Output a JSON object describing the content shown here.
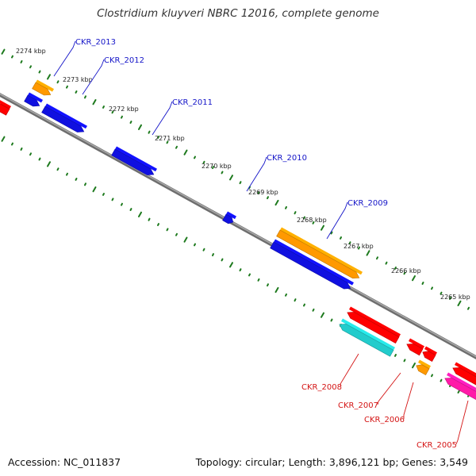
{
  "title": "Clostridium kluyveri NBRC 12016, complete genome",
  "footer": {
    "accession": "Accession: NC_011837",
    "summary": "Topology: circular; Length: 3,896,121 bp; Genes: 3,549"
  },
  "colors": {
    "backbone": "#888888",
    "tick": "#1e7a1e",
    "forward_label": "#1414c8",
    "reverse_label": "#d41414",
    "blue": "#1010e0",
    "orange": "#ff9900",
    "red": "#ff0000",
    "cyan": "#22cccc",
    "magenta": "#ff1aa8"
  },
  "scale": {
    "unit": "kbp",
    "labels": [
      "2274 kbp",
      "2273 kbp",
      "2272 kbp",
      "2271 kbp",
      "2270 kbp",
      "2269 kbp",
      "2268 kbp",
      "2267 kbp",
      "2266 kbp",
      "2265 kbp"
    ]
  },
  "genes": [
    {
      "label": "CKR_2013",
      "strand": "forward"
    },
    {
      "label": "CKR_2012",
      "strand": "forward"
    },
    {
      "label": "CKR_2011",
      "strand": "forward"
    },
    {
      "label": "CKR_2010",
      "strand": "forward"
    },
    {
      "label": "CKR_2009",
      "strand": "forward"
    },
    {
      "label": "CKR_2008",
      "strand": "reverse"
    },
    {
      "label": "CKR_2007",
      "strand": "reverse"
    },
    {
      "label": "CKR_2006",
      "strand": "reverse"
    },
    {
      "label": "CKR_2005",
      "strand": "reverse"
    }
  ]
}
